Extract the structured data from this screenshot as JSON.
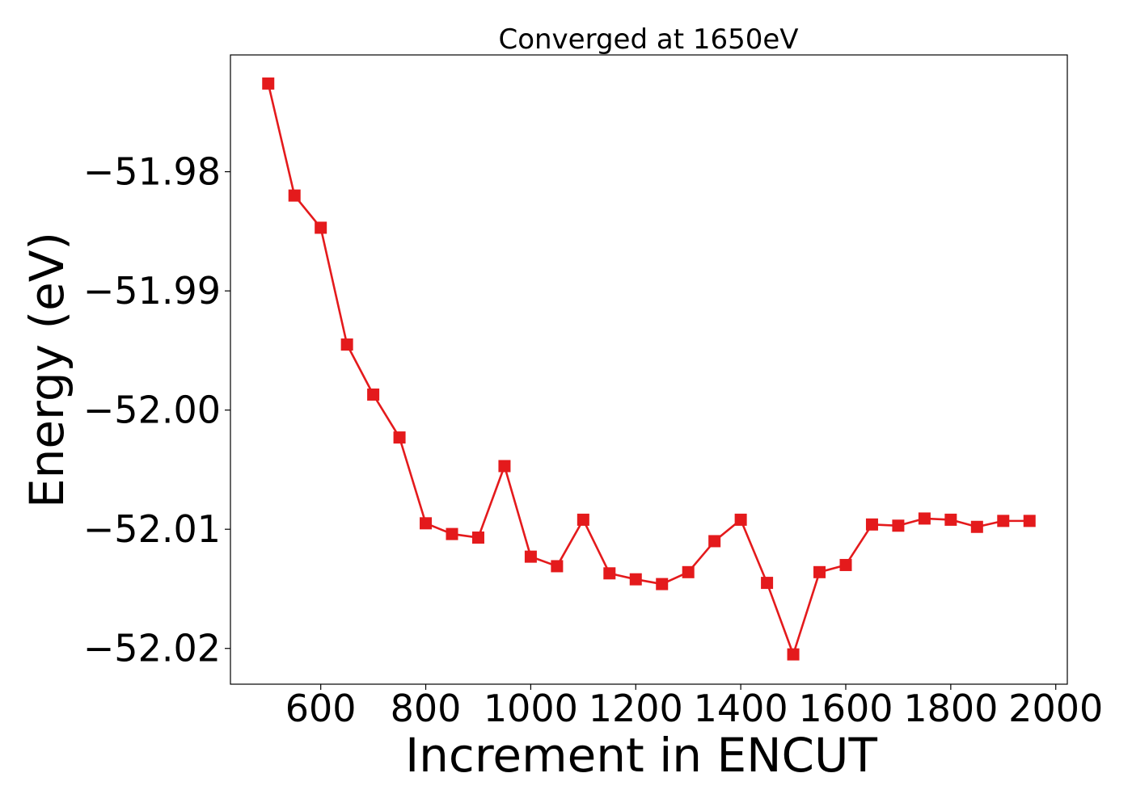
{
  "chart_data": {
    "type": "line",
    "title": "Converged at 1650eV",
    "xlabel": "Increment in ENCUT",
    "ylabel": "Energy (eV)",
    "xlim": [
      428,
      2022
    ],
    "ylim": [
      -52.023,
      -51.9702
    ],
    "x_ticks": [
      600,
      800,
      1000,
      1200,
      1400,
      1600,
      1800,
      2000
    ],
    "x_tick_labels": [
      "600",
      "800",
      "1000",
      "1200",
      "1400",
      "1600",
      "1800",
      "2000"
    ],
    "y_ticks": [
      -51.98,
      -51.99,
      -52.0,
      -52.01,
      -52.02
    ],
    "y_tick_labels": [
      "−51.98",
      "−51.99",
      "−52.00",
      "−52.01",
      "−52.02"
    ],
    "grid": false,
    "legend": false,
    "series": [
      {
        "color": "#e41a1c",
        "marker": "square",
        "x": [
          500,
          550,
          600,
          650,
          700,
          750,
          800,
          850,
          900,
          950,
          1000,
          1050,
          1100,
          1150,
          1200,
          1250,
          1300,
          1350,
          1400,
          1450,
          1500,
          1550,
          1600,
          1650,
          1700,
          1750,
          1800,
          1850,
          1900,
          1950
        ],
        "y": [
          -51.9726,
          -51.982,
          -51.9847,
          -51.9945,
          -51.9987,
          -52.0023,
          -52.0095,
          -52.0104,
          -52.0107,
          -52.0047,
          -52.0123,
          -52.0131,
          -52.0092,
          -52.0137,
          -52.0142,
          -52.0146,
          -52.0136,
          -52.011,
          -52.0092,
          -52.0145,
          -52.0205,
          -52.0136,
          -52.013,
          -52.0096,
          -52.0097,
          -52.0091,
          -52.0092,
          -52.0098,
          -52.0093,
          -52.0093
        ]
      }
    ]
  }
}
